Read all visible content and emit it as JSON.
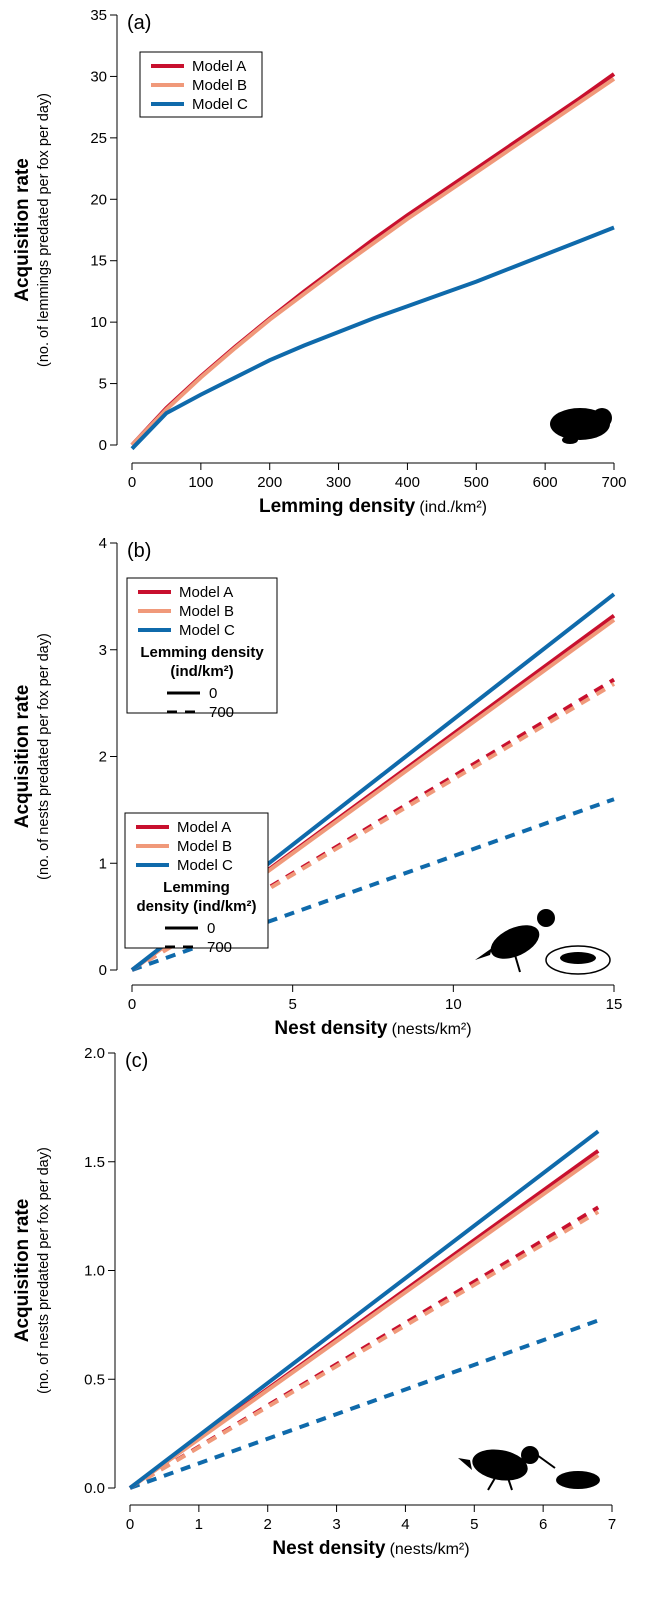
{
  "chart_data": [
    {
      "type": "line",
      "panel_label": "(a)",
      "ylabel": "Acquisition rate",
      "ylabel_sub": "(no. of lemmings predated per fox per day)",
      "xlabel": "Lemming density",
      "xlabel_unit": "(ind./km²)",
      "x": [
        0,
        50,
        100,
        150,
        200,
        250,
        300,
        350,
        400,
        450,
        500,
        550,
        600,
        650,
        700
      ],
      "xlim": [
        0,
        700
      ],
      "xticks": [
        0,
        100,
        200,
        300,
        400,
        500,
        600,
        700
      ],
      "ylim": [
        0,
        35
      ],
      "yticks": [
        0,
        5,
        10,
        15,
        20,
        25,
        30,
        35
      ],
      "legend": "top-left",
      "series": [
        {
          "name": "Model A",
          "color": "#c8102e",
          "values": [
            0,
            3.0,
            5.6,
            8.0,
            10.3,
            12.5,
            14.6,
            16.7,
            18.7,
            20.6,
            22.5,
            24.4,
            26.3,
            28.2,
            30.2
          ]
        },
        {
          "name": "Model B",
          "color": "#f0997a",
          "values": [
            0,
            2.9,
            5.5,
            7.9,
            10.2,
            12.3,
            14.4,
            16.4,
            18.4,
            20.3,
            22.2,
            24.1,
            26.0,
            27.9,
            29.8
          ]
        },
        {
          "name": "Model C",
          "color": "#0f6aab",
          "values": [
            -0.3,
            2.6,
            4.1,
            5.5,
            6.9,
            8.1,
            9.2,
            10.3,
            11.3,
            12.3,
            13.3,
            14.4,
            15.5,
            16.6,
            17.7
          ]
        }
      ]
    },
    {
      "type": "line",
      "panel_label": "(b)",
      "ylabel": "Acquisition rate",
      "ylabel_sub": "(no. of nests predated per fox per day)",
      "xlabel": "Nest density",
      "xlabel_unit": "(nests/km²)",
      "x": [
        0,
        15
      ],
      "xlim": [
        0,
        15
      ],
      "xticks": [
        0,
        5,
        10,
        15
      ],
      "ylim": [
        0,
        4
      ],
      "yticks": [
        0,
        1,
        2,
        3,
        4
      ],
      "legend": "top-left",
      "dash_legend": {
        "title": "Lemming density (ind/km²)",
        "entries": [
          {
            "value": 0,
            "dash": "none"
          },
          {
            "value": 700,
            "dash": "10,8"
          }
        ]
      },
      "series": [
        {
          "name": "Model A",
          "color": "#c8102e",
          "lines": [
            {
              "values": [
                0,
                3.32
              ]
            },
            {
              "values": [
                0,
                2.72
              ]
            }
          ]
        },
        {
          "name": "Model B",
          "color": "#f0997a",
          "lines": [
            {
              "values": [
                0,
                3.28
              ]
            },
            {
              "values": [
                0,
                2.68
              ]
            }
          ]
        },
        {
          "name": "Model C",
          "color": "#0f6aab",
          "lines": [
            {
              "values": [
                0,
                3.52
              ]
            },
            {
              "values": [
                0,
                1.6
              ]
            }
          ]
        }
      ]
    },
    {
      "type": "line",
      "panel_label": "(c)",
      "ylabel": "Acquisition rate",
      "ylabel_sub": "(no. of nests predated per fox per day)",
      "xlabel": "Nest density",
      "xlabel_unit": "(nests/km²)",
      "x": [
        0,
        6.8
      ],
      "xlim": [
        0,
        7
      ],
      "xticks": [
        0,
        1,
        2,
        3,
        4,
        5,
        6,
        7
      ],
      "ylim": [
        0,
        2
      ],
      "yticks": [
        {
          "value": 0,
          "label": "0.0"
        },
        0.5,
        {
          "value": 1,
          "label": "1.0"
        },
        1.5,
        {
          "value": 2,
          "label": "2.0"
        }
      ],
      "legend": "top-left",
      "dash_legend": {
        "title": "Lemming density (ind/km²)",
        "entries": [
          {
            "value": 0,
            "dash": "none"
          },
          {
            "value": 700,
            "dash": "10,8"
          }
        ]
      },
      "series": [
        {
          "name": "Model A",
          "color": "#c8102e",
          "lines": [
            {
              "values": [
                0,
                1.55
              ]
            },
            {
              "values": [
                0,
                1.29
              ]
            }
          ]
        },
        {
          "name": "Model B",
          "color": "#f0997a",
          "lines": [
            {
              "values": [
                0,
                1.53
              ]
            },
            {
              "values": [
                0,
                1.27
              ]
            }
          ]
        },
        {
          "name": "Model C",
          "color": "#0f6aab",
          "lines": [
            {
              "values": [
                0,
                1.64
              ]
            },
            {
              "values": [
                0,
                0.77
              ]
            }
          ]
        }
      ]
    }
  ]
}
